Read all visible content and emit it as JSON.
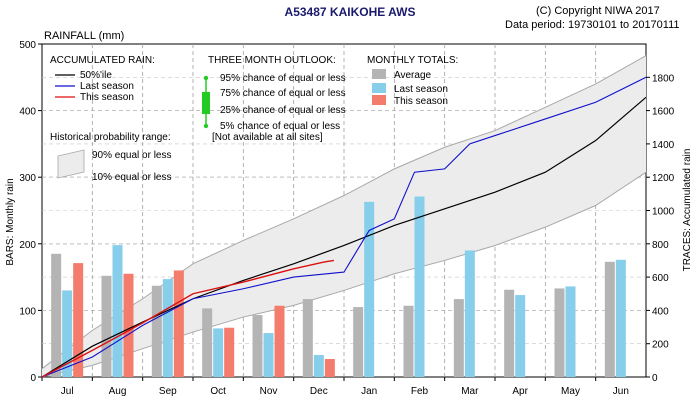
{
  "header": {
    "title": "A53487  KAIKOHE AWS",
    "copyright": "(C) Copyright NIWA  2017",
    "period": "Data period:  19730101  to  20170111",
    "units_left": "RAINFALL (mm)"
  },
  "legend_accum": {
    "heading": "ACCUMULATED RAIN:",
    "items": [
      "50%'ile",
      "Last season",
      "This season"
    ],
    "hist_heading": "Historical probability range:",
    "band_labels": [
      "90% equal or less",
      "10% equal or less"
    ]
  },
  "legend_outlook": {
    "heading": "THREE MONTH OUTLOOK:",
    "items": [
      "95% chance of equal or less",
      "75% chance of equal or less",
      "25% chance of equal or less",
      "5% chance of equal or less"
    ],
    "note": "[Not available at all sites]"
  },
  "legend_monthly": {
    "heading": "MONTHLY TOTALS:",
    "items": [
      "Average",
      "Last season",
      "This season"
    ]
  },
  "colors": {
    "average": "#b4b4b4",
    "last": "#87ceeb",
    "this": "#f47c6c",
    "median": "#000000",
    "last_line": "#1010cc",
    "this_line": "#dd1010",
    "band": "#ececec",
    "band_edge": "#a8a8a8",
    "outlook": "#22cc22"
  },
  "chart_data": {
    "type": "bar",
    "categories": [
      "Jul",
      "Aug",
      "Sep",
      "Oct",
      "Nov",
      "Dec",
      "Jan",
      "Feb",
      "Mar",
      "Apr",
      "May",
      "Jun"
    ],
    "ylabel_left": "BARS: Monthly rain",
    "ylabel_right": "TRACES: Accumulated rain",
    "ylim_left": [
      0,
      500
    ],
    "ylim_right": [
      0,
      2000
    ],
    "yticks_left": [
      0,
      100,
      200,
      300,
      400,
      500
    ],
    "yticks_right": [
      0,
      200,
      400,
      600,
      800,
      1000,
      1200,
      1400,
      1600,
      1800
    ],
    "series": [
      {
        "name": "Average",
        "values": [
          185,
          152,
          137,
          103,
          93,
          117,
          105,
          107,
          117,
          131,
          133,
          173
        ]
      },
      {
        "name": "Last season",
        "values": [
          130,
          198,
          147,
          73,
          66,
          33,
          263,
          271,
          190,
          123,
          136,
          176
        ]
      },
      {
        "name": "This season",
        "values": [
          171,
          155,
          160,
          74,
          107,
          27,
          null,
          null,
          null,
          null,
          null,
          null
        ]
      }
    ],
    "accumulated": {
      "median": [
        [
          0,
          0
        ],
        [
          1,
          185
        ],
        [
          2,
          330
        ],
        [
          3,
          470
        ],
        [
          4,
          580
        ],
        [
          5,
          680
        ],
        [
          6,
          790
        ],
        [
          7,
          910
        ],
        [
          8,
          1010
        ],
        [
          9,
          1110
        ],
        [
          10,
          1230
        ],
        [
          11,
          1420
        ],
        [
          12,
          1680
        ]
      ],
      "last_season": [
        [
          0,
          0
        ],
        [
          1,
          120
        ],
        [
          2,
          310
        ],
        [
          3,
          470
        ],
        [
          4,
          530
        ],
        [
          5,
          600
        ],
        [
          6,
          630
        ],
        [
          6.5,
          880
        ],
        [
          7,
          950
        ],
        [
          7.4,
          1230
        ],
        [
          8,
          1250
        ],
        [
          8.5,
          1400
        ],
        [
          9,
          1450
        ],
        [
          10,
          1550
        ],
        [
          11,
          1650
        ],
        [
          12,
          1800
        ]
      ],
      "this_season": [
        [
          0,
          0
        ],
        [
          1,
          160
        ],
        [
          2,
          325
        ],
        [
          3,
          500
        ],
        [
          4,
          570
        ],
        [
          5,
          650
        ],
        [
          5.6,
          690
        ],
        [
          5.8,
          700
        ]
      ],
      "band_upper": [
        [
          0,
          50
        ],
        [
          1,
          280
        ],
        [
          2,
          470
        ],
        [
          3,
          680
        ],
        [
          4,
          820
        ],
        [
          5,
          950
        ],
        [
          6,
          1090
        ],
        [
          7,
          1250
        ],
        [
          8,
          1380
        ],
        [
          9,
          1480
        ],
        [
          10,
          1620
        ],
        [
          11,
          1760
        ],
        [
          12,
          1930
        ]
      ],
      "band_lower": [
        [
          0,
          0
        ],
        [
          1,
          70
        ],
        [
          2,
          170
        ],
        [
          3,
          270
        ],
        [
          4,
          360
        ],
        [
          5,
          430
        ],
        [
          6,
          520
        ],
        [
          7,
          620
        ],
        [
          8,
          700
        ],
        [
          9,
          790
        ],
        [
          10,
          900
        ],
        [
          11,
          1030
        ],
        [
          12,
          1230
        ]
      ]
    },
    "grid": true,
    "grid_style": "dashed"
  }
}
